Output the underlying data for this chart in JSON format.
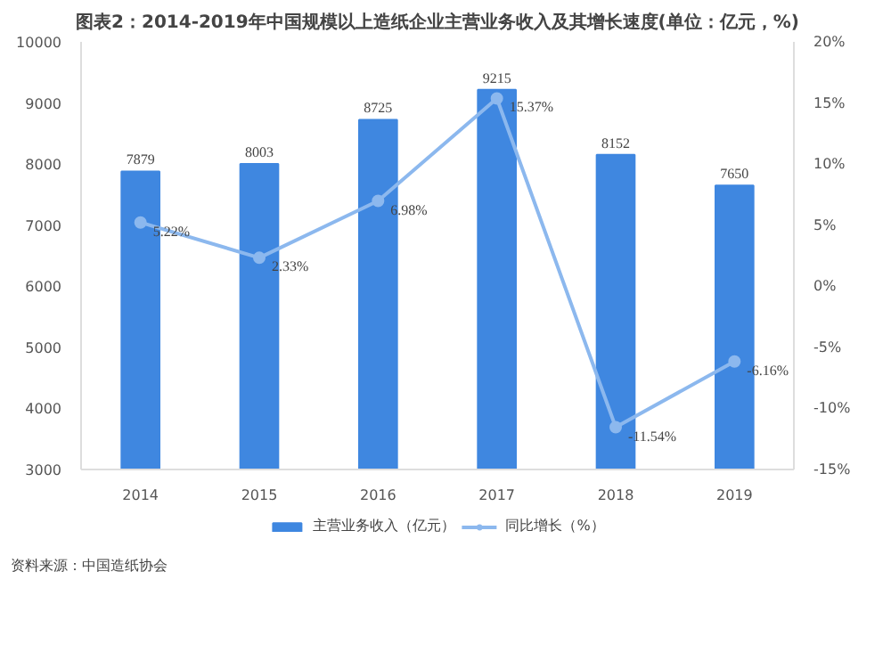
{
  "chart_data": {
    "type": "bar",
    "title": "图表2：2014-2019年中国规模以上造纸企业主营业务收入及其增长速度(单位：亿元，%)",
    "categories": [
      "2014",
      "2015",
      "2016",
      "2017",
      "2018",
      "2019"
    ],
    "series": [
      {
        "name": "主营业务收入（亿元）",
        "color": "#3f87e0",
        "values": [
          7879,
          8003,
          8725,
          9215,
          8152,
          7650
        ],
        "data_labels": true
      },
      {
        "name": "同比增长（%）",
        "type": "line",
        "axis": "y2",
        "color": "#8cb8ee",
        "marker": "circle",
        "values": [
          5.22,
          2.33,
          6.98,
          15.37,
          -11.54,
          -6.16
        ],
        "value_labels": [
          "5.22%",
          "2.33%",
          "6.98%",
          "15.37%",
          "-11.54%",
          "-6.16%"
        ]
      }
    ],
    "ylim": [
      3000,
      10000
    ],
    "yticks": [
      3000,
      4000,
      5000,
      6000,
      7000,
      8000,
      9000,
      10000
    ],
    "y2lim": [
      -15,
      20
    ],
    "y2ticks": [
      {
        "value": -15,
        "label": "-15%"
      },
      {
        "value": -10,
        "label": "-10%"
      },
      {
        "value": -5,
        "label": "-5%"
      },
      {
        "value": 0,
        "label": "0%"
      },
      {
        "value": 5,
        "label": "5%"
      },
      {
        "value": 10,
        "label": "10%"
      },
      {
        "value": 15,
        "label": "15%"
      },
      {
        "value": 20,
        "label": "20%"
      }
    ],
    "grid": false,
    "legend": "bottom",
    "annotations": [
      "资料来源：中国造纸协会"
    ]
  }
}
